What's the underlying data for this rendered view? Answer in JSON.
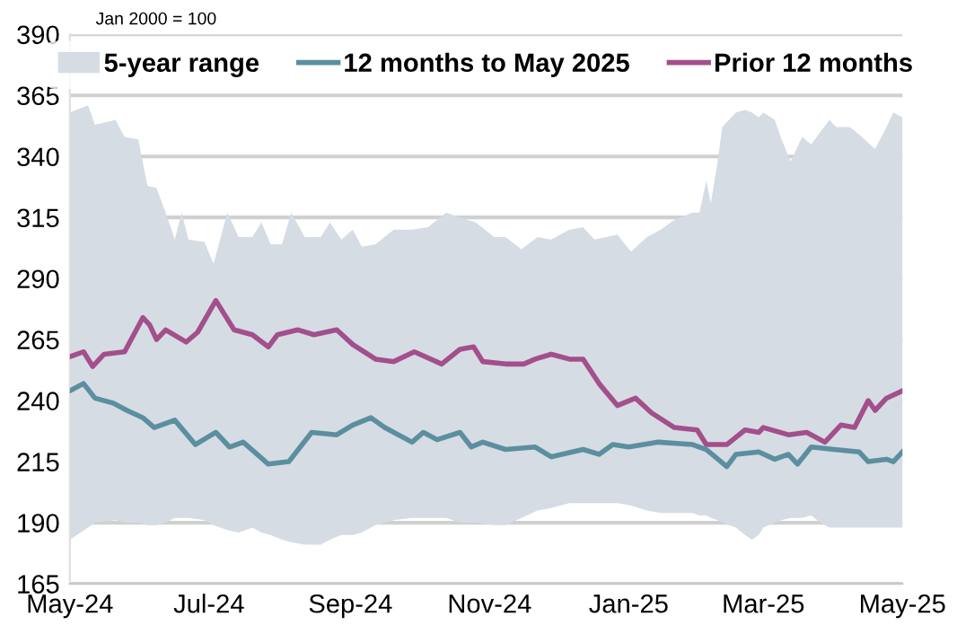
{
  "chart_data": {
    "type": "line",
    "annotations": [
      "Jan 2000 = 100"
    ],
    "ylim": [
      165,
      390
    ],
    "yticks": [
      165,
      190,
      215,
      240,
      265,
      290,
      315,
      340,
      365,
      390
    ],
    "xlim": [
      "2024-05-01",
      "2025-05-01"
    ],
    "xticks": [
      {
        "value": "2024-05-01",
        "label": "May-24"
      },
      {
        "value": "2024-07-01",
        "label": "Jul-24"
      },
      {
        "value": "2024-09-01",
        "label": "Sep-24"
      },
      {
        "value": "2024-11-01",
        "label": "Nov-24"
      },
      {
        "value": "2025-01-01",
        "label": "Jan-25"
      },
      {
        "value": "2025-03-01",
        "label": "Mar-25"
      },
      {
        "value": "2025-05-01",
        "label": "May-25"
      }
    ],
    "grid": "y",
    "legend": "top",
    "marker": "none",
    "line_style": "solid",
    "series": [
      {
        "name": "5-year range",
        "type": "area",
        "color": "#d6dce4",
        "x": [
          "2024-05-01",
          "2024-05-09",
          "2024-05-12",
          "2024-05-21",
          "2024-05-25",
          "2024-05-31",
          "2024-06-04",
          "2024-06-08",
          "2024-06-12",
          "2024-06-16",
          "2024-06-19",
          "2024-06-22",
          "2024-06-29",
          "2024-07-03",
          "2024-07-09",
          "2024-07-14",
          "2024-07-20",
          "2024-07-24",
          "2024-07-28",
          "2024-08-02",
          "2024-08-06",
          "2024-08-12",
          "2024-08-19",
          "2024-08-23",
          "2024-08-28",
          "2024-09-02",
          "2024-09-06",
          "2024-09-12",
          "2024-09-20",
          "2024-09-28",
          "2024-10-05",
          "2024-10-13",
          "2024-10-19",
          "2024-10-26",
          "2024-11-03",
          "2024-11-08",
          "2024-11-15",
          "2024-11-22",
          "2024-11-28",
          "2024-12-06",
          "2024-12-12",
          "2024-12-17",
          "2024-12-27",
          "2025-01-02",
          "2025-01-09",
          "2025-01-15",
          "2025-01-21",
          "2025-01-29",
          "2025-02-01",
          "2025-02-04",
          "2025-02-06",
          "2025-02-09",
          "2025-02-11",
          "2025-02-17",
          "2025-02-21",
          "2025-02-24",
          "2025-02-27",
          "2025-03-01",
          "2025-03-06",
          "2025-03-09",
          "2025-03-13",
          "2025-03-18",
          "2025-03-22",
          "2025-03-26",
          "2025-03-30",
          "2025-04-02",
          "2025-04-08",
          "2025-04-12",
          "2025-04-19",
          "2025-04-24",
          "2025-04-27",
          "2025-05-01"
        ],
        "lower": [
          183,
          188,
          190,
          191,
          190,
          190,
          189,
          189,
          190,
          192,
          192,
          192,
          191,
          189,
          187,
          186,
          188,
          186,
          185,
          183,
          182,
          181,
          181,
          183,
          185,
          185,
          186,
          189,
          191,
          192,
          192,
          192,
          190,
          190,
          189,
          189,
          192,
          195,
          196,
          198,
          198,
          198,
          198,
          197,
          195,
          194,
          194,
          194,
          193,
          193,
          192,
          191,
          190,
          188,
          185,
          183,
          185,
          188,
          190,
          191,
          192,
          192,
          193,
          190,
          188,
          188,
          188,
          188,
          188,
          188,
          188,
          188
        ],
        "values": [
          null,
          null,
          null,
          null,
          null,
          null,
          null,
          null,
          null,
          null,
          null,
          null,
          null,
          null,
          null,
          null,
          null,
          null,
          null,
          null,
          null,
          null,
          null,
          null,
          null,
          null,
          null,
          null,
          null,
          null,
          null,
          null,
          null,
          null,
          null,
          null,
          null,
          null,
          null,
          null,
          null,
          null,
          null,
          null,
          null,
          null,
          null,
          null,
          null,
          null,
          null,
          null,
          null,
          null,
          null,
          null,
          null,
          null,
          null,
          null,
          null,
          null,
          null,
          null,
          null,
          null,
          null,
          null,
          null,
          null,
          null,
          null
        ],
        "upper": [
          358,
          361,
          353,
          355,
          348,
          347,
          328,
          327,
          317,
          306,
          317,
          306,
          305,
          296,
          317,
          307,
          307,
          313,
          304,
          304,
          317,
          307,
          307,
          313,
          306,
          310,
          303,
          304,
          310,
          310,
          311,
          317,
          315,
          313,
          307,
          307,
          302,
          307,
          306,
          310,
          311,
          306,
          308,
          301,
          307,
          310,
          314,
          317,
          317,
          330,
          321,
          338,
          352,
          358,
          359,
          358,
          356,
          358,
          355,
          347,
          338,
          348,
          345,
          350,
          355,
          352,
          352,
          349,
          343,
          352,
          358,
          356
        ]
      },
      {
        "name": "12 months to May 2025",
        "color": "#5b8fa0",
        "x": [
          "2024-05-01",
          "2024-05-07",
          "2024-05-12",
          "2024-05-20",
          "2024-05-26",
          "2024-06-02",
          "2024-06-07",
          "2024-06-16",
          "2024-06-25",
          "2024-07-04",
          "2024-07-10",
          "2024-07-16",
          "2024-07-27",
          "2024-08-05",
          "2024-08-15",
          "2024-08-26",
          "2024-09-02",
          "2024-09-10",
          "2024-09-16",
          "2024-09-28",
          "2024-10-03",
          "2024-10-09",
          "2024-10-19",
          "2024-10-24",
          "2024-10-29",
          "2024-11-08",
          "2024-11-21",
          "2024-11-28",
          "2024-12-12",
          "2024-12-19",
          "2024-12-25",
          "2025-01-01",
          "2025-01-14",
          "2025-01-29",
          "2025-02-04",
          "2025-02-13",
          "2025-02-17",
          "2025-02-27",
          "2025-03-06",
          "2025-03-12",
          "2025-03-16",
          "2025-03-22",
          "2025-04-01",
          "2025-04-12",
          "2025-04-16",
          "2025-04-24",
          "2025-04-27",
          "2025-05-01"
        ],
        "values": [
          244,
          247,
          241,
          239,
          236,
          233,
          229,
          232,
          222,
          227,
          221,
          223,
          214,
          215,
          227,
          226,
          230,
          233,
          229,
          223,
          227,
          224,
          227,
          221,
          223,
          220,
          221,
          217,
          220,
          218,
          222,
          221,
          223,
          222,
          220,
          213,
          218,
          219,
          216,
          218,
          214,
          221,
          220,
          219,
          215,
          216,
          215,
          219
        ]
      },
      {
        "name": "Prior 12 months",
        "color": "#a34f8c",
        "x": [
          "2024-05-01",
          "2024-05-07",
          "2024-05-11",
          "2024-05-16",
          "2024-05-25",
          "2024-06-02",
          "2024-06-05",
          "2024-06-08",
          "2024-06-12",
          "2024-06-21",
          "2024-06-26",
          "2024-07-04",
          "2024-07-12",
          "2024-07-20",
          "2024-07-27",
          "2024-07-31",
          "2024-08-09",
          "2024-08-16",
          "2024-08-26",
          "2024-09-02",
          "2024-09-12",
          "2024-09-20",
          "2024-09-29",
          "2024-10-11",
          "2024-10-19",
          "2024-10-25",
          "2024-10-29",
          "2024-11-08",
          "2024-11-16",
          "2024-11-21",
          "2024-11-28",
          "2024-12-06",
          "2024-12-12",
          "2024-12-19",
          "2024-12-27",
          "2025-01-04",
          "2025-01-11",
          "2025-01-21",
          "2025-01-31",
          "2025-02-04",
          "2025-02-13",
          "2025-02-21",
          "2025-02-27",
          "2025-03-01",
          "2025-03-12",
          "2025-03-20",
          "2025-03-28",
          "2025-04-04",
          "2025-04-10",
          "2025-04-16",
          "2025-04-19",
          "2025-04-24",
          "2025-05-01"
        ],
        "values": [
          258,
          260,
          254,
          259,
          260,
          274,
          271,
          265,
          269,
          264,
          268,
          281,
          269,
          267,
          262,
          267,
          269,
          267,
          269,
          263,
          257,
          256,
          260,
          255,
          261,
          262,
          256,
          255,
          255,
          257,
          259,
          257,
          257,
          247,
          238,
          241,
          235,
          229,
          228,
          222,
          222,
          228,
          227,
          229,
          226,
          227,
          223,
          230,
          229,
          240,
          236,
          241,
          244
        ]
      }
    ]
  }
}
